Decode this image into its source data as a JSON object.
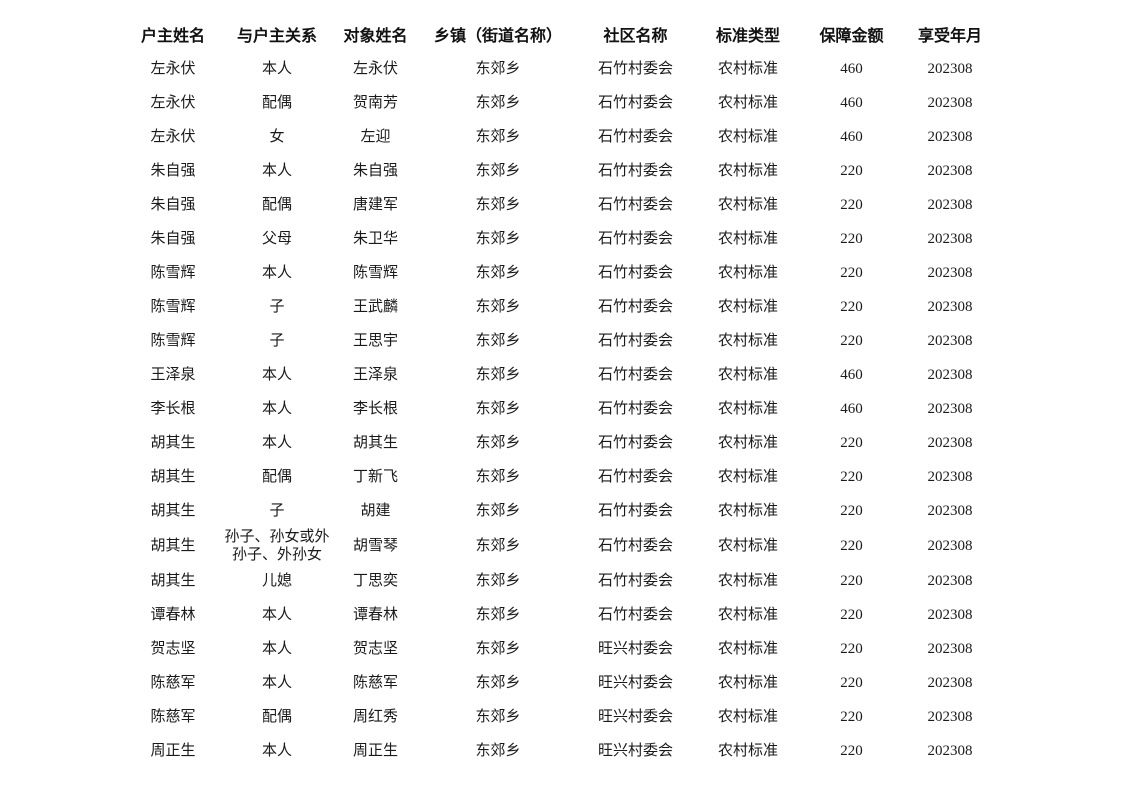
{
  "page": {
    "background_color": "#ffffff",
    "text_color": "#1a1a1a"
  },
  "table": {
    "columns": [
      {
        "label": "户主姓名"
      },
      {
        "label": "与户主关系"
      },
      {
        "label": "对象姓名"
      },
      {
        "label": "乡镇（街道名称）"
      },
      {
        "label": "社区名称"
      },
      {
        "label": "标准类型"
      },
      {
        "label": "保障金额"
      },
      {
        "label": "享受年月"
      }
    ],
    "rows": [
      [
        "左永伏",
        "本人",
        "左永伏",
        "东郊乡",
        "石竹村委会",
        "农村标准",
        "460",
        "202308"
      ],
      [
        "左永伏",
        "配偶",
        "贺南芳",
        "东郊乡",
        "石竹村委会",
        "农村标准",
        "460",
        "202308"
      ],
      [
        "左永伏",
        "女",
        "左迎",
        "东郊乡",
        "石竹村委会",
        "农村标准",
        "460",
        "202308"
      ],
      [
        "朱自强",
        "本人",
        "朱自强",
        "东郊乡",
        "石竹村委会",
        "农村标准",
        "220",
        "202308"
      ],
      [
        "朱自强",
        "配偶",
        "唐建军",
        "东郊乡",
        "石竹村委会",
        "农村标准",
        "220",
        "202308"
      ],
      [
        "朱自强",
        "父母",
        "朱卫华",
        "东郊乡",
        "石竹村委会",
        "农村标准",
        "220",
        "202308"
      ],
      [
        "陈雪辉",
        "本人",
        "陈雪辉",
        "东郊乡",
        "石竹村委会",
        "农村标准",
        "220",
        "202308"
      ],
      [
        "陈雪辉",
        "子",
        "王武麟",
        "东郊乡",
        "石竹村委会",
        "农村标准",
        "220",
        "202308"
      ],
      [
        "陈雪辉",
        "子",
        "王思宇",
        "东郊乡",
        "石竹村委会",
        "农村标准",
        "220",
        "202308"
      ],
      [
        "王泽泉",
        "本人",
        "王泽泉",
        "东郊乡",
        "石竹村委会",
        "农村标准",
        "460",
        "202308"
      ],
      [
        "李长根",
        "本人",
        "李长根",
        "东郊乡",
        "石竹村委会",
        "农村标准",
        "460",
        "202308"
      ],
      [
        "胡其生",
        "本人",
        "胡其生",
        "东郊乡",
        "石竹村委会",
        "农村标准",
        "220",
        "202308"
      ],
      [
        "胡其生",
        "配偶",
        "丁新飞",
        "东郊乡",
        "石竹村委会",
        "农村标准",
        "220",
        "202308"
      ],
      [
        "胡其生",
        "子",
        "胡建",
        "东郊乡",
        "石竹村委会",
        "农村标准",
        "220",
        "202308"
      ],
      [
        "胡其生",
        "孙子、孙女或外孙子、外孙女",
        "胡雪琴",
        "东郊乡",
        "石竹村委会",
        "农村标准",
        "220",
        "202308"
      ],
      [
        "胡其生",
        "儿媳",
        "丁思奕",
        "东郊乡",
        "石竹村委会",
        "农村标准",
        "220",
        "202308"
      ],
      [
        "谭春林",
        "本人",
        "谭春林",
        "东郊乡",
        "石竹村委会",
        "农村标准",
        "220",
        "202308"
      ],
      [
        "贺志坚",
        "本人",
        "贺志坚",
        "东郊乡",
        "旺兴村委会",
        "农村标准",
        "220",
        "202308"
      ],
      [
        "陈慈军",
        "本人",
        "陈慈军",
        "东郊乡",
        "旺兴村委会",
        "农村标准",
        "220",
        "202308"
      ],
      [
        "陈慈军",
        "配偶",
        "周红秀",
        "东郊乡",
        "旺兴村委会",
        "农村标准",
        "220",
        "202308"
      ],
      [
        "周正生",
        "本人",
        "周正生",
        "东郊乡",
        "旺兴村委会",
        "农村标准",
        "220",
        "202308"
      ]
    ]
  }
}
